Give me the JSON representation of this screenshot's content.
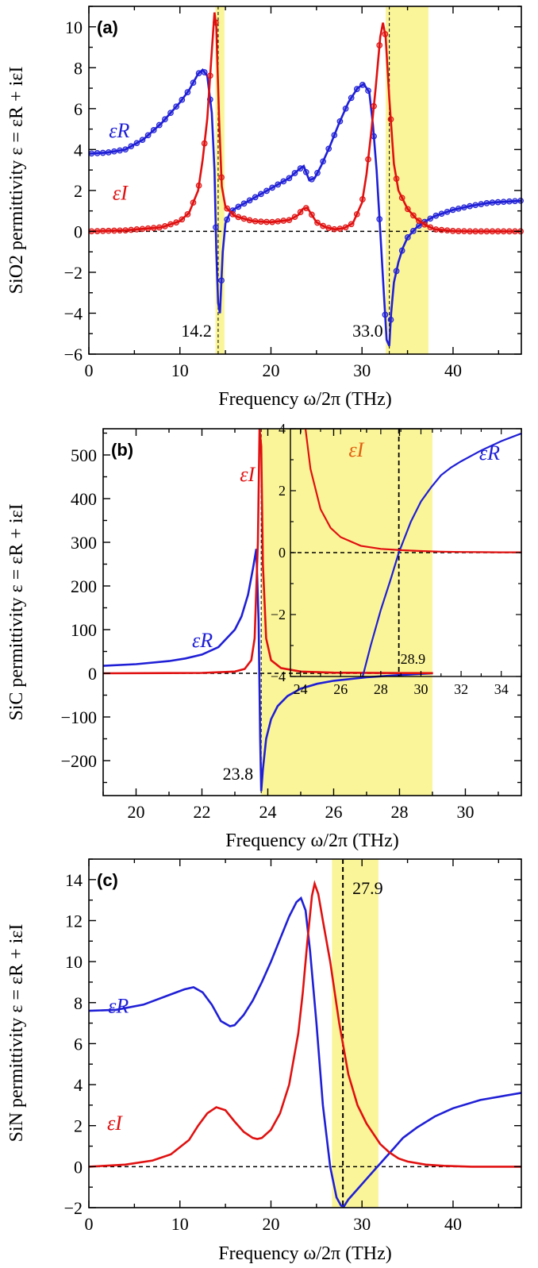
{
  "chart_data": [
    {
      "panel": "(a)",
      "type": "line",
      "xlabel": "Frequency ω/2π (THz)",
      "ylabel": "SiO2 permittivity ε = εR + iεI",
      "xlim": [
        0,
        47.5
      ],
      "ylim": [
        -6,
        11
      ],
      "xticks": [
        0,
        10,
        20,
        30,
        40
      ],
      "yticks": [
        -6,
        -4,
        -2,
        0,
        2,
        4,
        6,
        8,
        10
      ],
      "highlight_bands": [
        [
          13.9,
          14.9
        ],
        [
          32.6,
          37.3
        ]
      ],
      "annotations": [
        {
          "text": "14.2",
          "x": 14.2
        },
        {
          "text": "33.0",
          "x": 33.0
        }
      ],
      "series": [
        {
          "name": "εR",
          "color": "#1f1fd6",
          "x": [
            0,
            2,
            4,
            6,
            8,
            10,
            11,
            12,
            12.5,
            13,
            13.5,
            13.8,
            14.0,
            14.2,
            14.4,
            14.7,
            15.0,
            15.5,
            16,
            18,
            20,
            22,
            23,
            23.6,
            24.2,
            24.8,
            25.5,
            26.5,
            27.5,
            28.5,
            29.5,
            30.2,
            30.8,
            31.2,
            31.6,
            32.0,
            32.4,
            32.7,
            33.0,
            33.2,
            33.5,
            34,
            34.5,
            35,
            36,
            37,
            38,
            40,
            42,
            44,
            47.5
          ],
          "y": [
            3.8,
            3.85,
            4.0,
            4.5,
            5.3,
            6.3,
            6.9,
            7.7,
            7.9,
            7.6,
            5.8,
            3.0,
            -1.0,
            -3.5,
            -4.0,
            -1.0,
            0.4,
            0.9,
            1.1,
            1.6,
            2.1,
            2.6,
            3.0,
            3.2,
            2.5,
            2.6,
            3.2,
            4.2,
            5.3,
            6.3,
            7.0,
            7.2,
            6.8,
            5.2,
            3.0,
            0.0,
            -3.0,
            -5.3,
            -5.6,
            -4.0,
            -2.5,
            -1.5,
            -0.8,
            -0.3,
            0.2,
            0.5,
            0.75,
            1.05,
            1.25,
            1.4,
            1.5
          ]
        },
        {
          "name": "εI",
          "color": "#e01010",
          "x": [
            0,
            4,
            8,
            10,
            11,
            12,
            12.5,
            13,
            13.5,
            13.8,
            14.0,
            14.3,
            14.6,
            15,
            16,
            18,
            20,
            22,
            23,
            23.5,
            24,
            24.5,
            25,
            26,
            27,
            28,
            29,
            30,
            30.5,
            31,
            31.5,
            32,
            32.3,
            32.6,
            33,
            33.5,
            34,
            35,
            36,
            37,
            38,
            40,
            42,
            47.5
          ],
          "y": [
            0.0,
            0.05,
            0.2,
            0.5,
            0.9,
            2.0,
            3.5,
            5.5,
            8.8,
            10.7,
            10.0,
            5.5,
            2.2,
            1.2,
            0.75,
            0.5,
            0.45,
            0.55,
            0.8,
            1.1,
            1.15,
            0.8,
            0.45,
            0.2,
            0.1,
            0.15,
            0.4,
            1.4,
            2.8,
            4.8,
            7.0,
            9.5,
            10.2,
            9.5,
            6.5,
            3.3,
            2.0,
            1.1,
            0.6,
            0.3,
            0.1,
            0.02,
            0.0,
            0.0
          ]
        }
      ]
    },
    {
      "panel": "(b)",
      "type": "line",
      "xlabel": "Frequency ω/2π (THz)",
      "ylabel": "SiC permittivity ε = εR + iεI",
      "xlim": [
        19,
        31.7
      ],
      "ylim": [
        -280,
        560
      ],
      "xticks": [
        20,
        22,
        24,
        26,
        28,
        30
      ],
      "yticks": [
        -200,
        -100,
        0,
        100,
        200,
        300,
        400,
        500
      ],
      "highlight_bands": [
        [
          23.8,
          29.0
        ]
      ],
      "annotations": [
        {
          "text": "23.8",
          "x": 23.8
        }
      ],
      "series": [
        {
          "name": "εR",
          "color": "#1f1fd6",
          "x": [
            19,
            20,
            21,
            21.5,
            22,
            22.5,
            23,
            23.2,
            23.4,
            23.55,
            23.65,
            23.72,
            23.77,
            23.8,
            23.85,
            23.95,
            24.1,
            24.3,
            24.6,
            25,
            25.5,
            26,
            27,
            28,
            29,
            30,
            31.7
          ],
          "y": [
            17,
            21,
            28,
            34,
            43,
            60,
            100,
            130,
            180,
            240,
            285,
            120,
            -150,
            -270,
            -220,
            -150,
            -105,
            -75,
            -52,
            -35,
            -24,
            -17,
            -9,
            -4,
            0,
            2,
            4
          ]
        },
        {
          "name": "εI",
          "color": "#e01010",
          "x": [
            19,
            21,
            22,
            23,
            23.3,
            23.5,
            23.6,
            23.7,
            23.75,
            23.8,
            23.85,
            23.95,
            24.1,
            24.4,
            25,
            26,
            28,
            31.7
          ],
          "y": [
            0,
            0.5,
            1,
            4,
            10,
            30,
            80,
            300,
            560,
            520,
            250,
            80,
            30,
            12,
            4,
            1.5,
            0.5,
            0.2
          ]
        }
      ],
      "inset": {
        "xlim": [
          23.5,
          35
        ],
        "ylim": [
          -4,
          4
        ],
        "xticks": [
          24,
          26,
          28,
          30,
          32,
          34
        ],
        "yticks": [
          -4,
          -2,
          0,
          2,
          4
        ],
        "annotations": [
          {
            "text": "28.9",
            "x": 28.9
          }
        ],
        "series": [
          {
            "name": "εR",
            "color": "#1f1fd6",
            "x": [
              27.1,
              27.5,
              28,
              28.5,
              28.9,
              29.5,
              30,
              30.5,
              31,
              31.5,
              32,
              33,
              34,
              35
            ],
            "y": [
              -4,
              -3.0,
              -1.85,
              -0.85,
              0,
              1.0,
              1.65,
              2.1,
              2.5,
              2.75,
              2.95,
              3.3,
              3.6,
              3.85
            ]
          },
          {
            "name": "εI",
            "color": "#e01010",
            "x": [
              24.25,
              24.5,
              25,
              25.5,
              26,
              27,
              28,
              29,
              30,
              31,
              32,
              33,
              34,
              35
            ],
            "y": [
              4,
              2.7,
              1.4,
              0.8,
              0.5,
              0.22,
              0.12,
              0.08,
              0.05,
              0.03,
              0.02,
              0.015,
              0.01,
              0.01
            ]
          }
        ],
        "labels": [
          "εI",
          "εR"
        ]
      }
    },
    {
      "panel": "(c)",
      "type": "line",
      "xlabel": "Frequency ω/2π (THz)",
      "ylabel": "SiN permittivity ε = εR + iεI",
      "xlim": [
        0,
        47.5
      ],
      "ylim": [
        -2,
        15
      ],
      "xticks": [
        0,
        10,
        20,
        30,
        40
      ],
      "yticks": [
        -2,
        0,
        2,
        4,
        6,
        8,
        10,
        12,
        14
      ],
      "highlight_bands": [
        [
          26.7,
          31.8
        ]
      ],
      "annotations": [
        {
          "text": "27.9",
          "x": 27.9
        }
      ],
      "series": [
        {
          "name": "εR",
          "color": "#1f1fd6",
          "x": [
            0,
            3,
            6,
            9,
            10.5,
            11.5,
            12.5,
            13.5,
            14.5,
            15.5,
            16,
            17,
            18,
            19,
            20,
            21,
            22,
            22.8,
            23.3,
            23.8,
            24.3,
            25,
            25.7,
            26.5,
            27.2,
            27.7,
            28,
            28.5,
            29.5,
            30.5,
            31.5,
            32.5,
            33.5,
            34.5,
            36,
            38,
            40,
            43,
            47.5
          ],
          "y": [
            7.6,
            7.65,
            7.9,
            8.4,
            8.65,
            8.75,
            8.5,
            7.9,
            7.1,
            6.85,
            6.9,
            7.4,
            8.1,
            9.0,
            10.0,
            11.1,
            12.2,
            12.9,
            13.1,
            12.5,
            10.5,
            7.0,
            3.0,
            0.0,
            -1.5,
            -1.9,
            -1.95,
            -1.6,
            -1.1,
            -0.6,
            -0.1,
            0.4,
            0.9,
            1.4,
            1.9,
            2.45,
            2.85,
            3.25,
            3.6
          ]
        },
        {
          "name": "εI",
          "color": "#e01010",
          "x": [
            0,
            4,
            7,
            9,
            11,
            12,
            13,
            14,
            15,
            16,
            17,
            18,
            18.5,
            19,
            20,
            21,
            22,
            23,
            23.5,
            24,
            24.5,
            24.8,
            25.2,
            25.7,
            26.5,
            27.5,
            28.5,
            29.5,
            30.5,
            32,
            33,
            34,
            35,
            37,
            39,
            42,
            47.5
          ],
          "y": [
            0.0,
            0.1,
            0.3,
            0.6,
            1.3,
            2.0,
            2.6,
            2.9,
            2.75,
            2.2,
            1.7,
            1.4,
            1.35,
            1.4,
            1.8,
            2.6,
            4.0,
            6.5,
            8.5,
            11.0,
            13.2,
            13.8,
            13.3,
            12.0,
            10.0,
            7.0,
            4.5,
            3.0,
            2.1,
            1.1,
            0.7,
            0.4,
            0.25,
            0.1,
            0.04,
            0.0,
            0.0
          ]
        }
      ]
    }
  ]
}
